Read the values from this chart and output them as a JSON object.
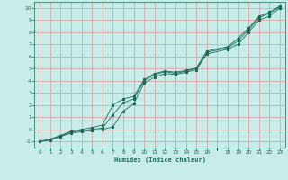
{
  "xlabel": "Humidex (Indice chaleur)",
  "bg_color": "#c8ece8",
  "grid_color": "#d8a8a8",
  "line_color": "#1a6b5a",
  "xlim": [
    -0.5,
    23.5
  ],
  "ylim": [
    -1.5,
    10.5
  ],
  "xticks": [
    0,
    1,
    2,
    3,
    4,
    5,
    6,
    7,
    8,
    9,
    10,
    11,
    12,
    13,
    14,
    15,
    16,
    18,
    19,
    20,
    21,
    22,
    23
  ],
  "yticks": [
    -1,
    0,
    1,
    2,
    3,
    4,
    5,
    6,
    7,
    8,
    9,
    10
  ],
  "curve1_x": [
    0,
    1,
    2,
    3,
    4,
    5,
    6,
    7,
    8,
    9,
    10,
    11,
    12,
    13,
    14,
    15,
    16,
    18,
    19,
    20,
    21,
    22,
    23
  ],
  "curve1_y": [
    -1,
    -0.9,
    -0.6,
    -0.3,
    -0.2,
    -0.1,
    0.0,
    0.2,
    1.5,
    2.1,
    3.8,
    4.3,
    4.6,
    4.5,
    4.7,
    4.9,
    6.2,
    6.6,
    7.0,
    8.0,
    9.0,
    9.3,
    10.0
  ],
  "curve2_x": [
    0,
    1,
    2,
    3,
    4,
    5,
    6,
    7,
    8,
    9,
    10,
    11,
    12,
    13,
    14,
    15,
    16,
    18,
    19,
    20,
    21,
    22,
    23
  ],
  "curve2_y": [
    -1,
    -0.85,
    -0.55,
    -0.25,
    -0.1,
    0.0,
    0.1,
    1.2,
    2.2,
    2.5,
    4.0,
    4.5,
    4.75,
    4.6,
    4.8,
    5.0,
    6.35,
    6.7,
    7.3,
    8.2,
    9.2,
    9.55,
    10.1
  ],
  "curve3_x": [
    0,
    1,
    2,
    3,
    4,
    5,
    6,
    7,
    8,
    9,
    10,
    11,
    12,
    13,
    14,
    15,
    16,
    18,
    19,
    20,
    21,
    22,
    23
  ],
  "curve3_y": [
    -1,
    -0.8,
    -0.5,
    -0.15,
    0.0,
    0.15,
    0.35,
    2.0,
    2.5,
    2.7,
    4.1,
    4.6,
    4.8,
    4.7,
    4.85,
    5.05,
    6.45,
    6.8,
    7.5,
    8.35,
    9.3,
    9.65,
    10.15
  ]
}
